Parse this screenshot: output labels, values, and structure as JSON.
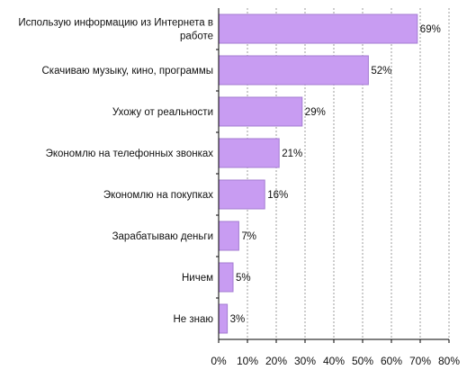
{
  "chart_data": {
    "type": "bar",
    "orientation": "horizontal",
    "title": "",
    "xlabel": "",
    "ylabel": "",
    "categories": [
      [
        "Использую информацию из Интернета в",
        "работе"
      ],
      [
        "Скачиваю музыку, кино, программы"
      ],
      [
        "Ухожу от реальности"
      ],
      [
        "Экономлю на телефонных звонках"
      ],
      [
        "Экономлю на покупках"
      ],
      [
        "Зарабатываю деньги"
      ],
      [
        "Ничем"
      ],
      [
        "Не знаю"
      ]
    ],
    "values": [
      69,
      52,
      29,
      21,
      16,
      7,
      5,
      3
    ],
    "value_labels": [
      "69%",
      "52%",
      "29%",
      "21%",
      "16%",
      "7%",
      "5%",
      "3%"
    ],
    "xlim": [
      0,
      80
    ],
    "x_ticks": [
      0,
      10,
      20,
      30,
      40,
      50,
      60,
      70,
      80
    ],
    "x_tick_labels": [
      "0%",
      "10%",
      "20%",
      "30%",
      "40%",
      "50%",
      "60%",
      "70%",
      "80%"
    ],
    "grid": "vertical dashed",
    "legend": "none",
    "colors": {
      "bar_fill": "#c89cf2",
      "bar_stroke": "#a47cd2",
      "grid": "#9e9e9e",
      "axis": "#000000",
      "text": "#111111"
    }
  }
}
